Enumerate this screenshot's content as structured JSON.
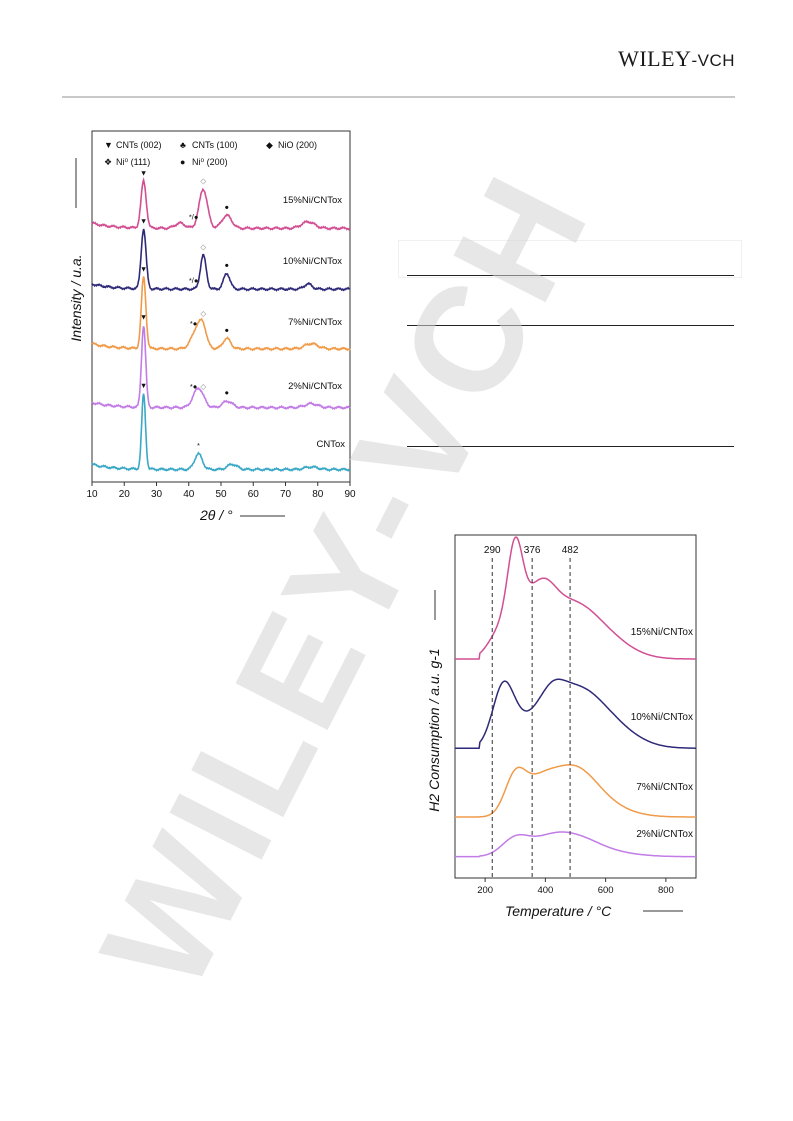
{
  "header": {
    "brand_main": "WILEY",
    "brand_suffix": "-VCH"
  },
  "watermark": {
    "text": "WILEY-VCH",
    "color": "#d3d3d3"
  },
  "chart_data": [
    {
      "type": "line",
      "id": "xrd",
      "xlabel": "2θ / °",
      "ylabel": "Intensity / u.a.",
      "xlim": [
        10,
        90
      ],
      "xticks": [
        10,
        20,
        30,
        40,
        50,
        60,
        70,
        80,
        90
      ],
      "legend": {
        "placement": "top",
        "entries": [
          {
            "symbol": "▼",
            "label": "CNTs (002)"
          },
          {
            "symbol": "♣",
            "label": "CNTs (100)"
          },
          {
            "symbol": "◆",
            "label": "NiO (200)"
          },
          {
            "symbol": "❖",
            "label": "Ni⁰ (111)"
          },
          {
            "symbol": "●",
            "label": "Ni⁰ (200)"
          }
        ]
      },
      "series": [
        {
          "name": "15%Ni/CNTox",
          "color": "#d24f93",
          "base": 0.09,
          "peaks": [
            [
              26,
              0.36,
              0.8
            ],
            [
              37.3,
              0.04,
              1.5
            ],
            [
              44.5,
              0.3,
              1.3
            ],
            [
              51.8,
              0.1,
              1.5
            ],
            [
              77,
              0.05,
              2
            ]
          ],
          "markers": [
            {
              "x": 26,
              "symbol": "▼"
            },
            {
              "x": 41.5,
              "symbol": "*/●"
            },
            {
              "x": 44.5,
              "symbol": "◇"
            },
            {
              "x": 51.8,
              "symbol": "●"
            }
          ]
        },
        {
          "name": "10%Ni/CNTox",
          "color": "#2e2a78",
          "base": 0.03,
          "peaks": [
            [
              26,
              0.46,
              0.75
            ],
            [
              44.5,
              0.26,
              0.9
            ],
            [
              51.8,
              0.12,
              1.0
            ],
            [
              77,
              0.04,
              1.2
            ]
          ],
          "markers": [
            {
              "x": 26,
              "symbol": "▼"
            },
            {
              "x": 41.5,
              "symbol": "*/●"
            },
            {
              "x": 44.5,
              "symbol": "◇"
            },
            {
              "x": 51.8,
              "symbol": "●"
            }
          ]
        },
        {
          "name": "7%Ni/CNTox",
          "color": "#f09b4a",
          "base": 0.04,
          "peaks": [
            [
              26,
              0.55,
              0.7
            ],
            [
              43,
              0.18,
              1.8
            ],
            [
              44.5,
              0.08,
              0.9
            ],
            [
              51.8,
              0.08,
              1.2
            ],
            [
              78,
              0.04,
              2
            ]
          ],
          "markers": [
            {
              "x": 26,
              "symbol": "▼"
            },
            {
              "x": 41.5,
              "symbol": "*●"
            },
            {
              "x": 44.5,
              "symbol": "◇"
            },
            {
              "x": 51.8,
              "symbol": "●"
            }
          ]
        },
        {
          "name": "2%Ni/CNTox",
          "color": "#c27ce6",
          "base": 0.08,
          "peaks": [
            [
              26,
              0.63,
              0.65
            ],
            [
              43,
              0.15,
              1.6
            ],
            [
              52,
              0.05,
              1.5
            ],
            [
              78,
              0.03,
              2
            ]
          ],
          "markers": [
            {
              "x": 26,
              "symbol": "▼"
            },
            {
              "x": 41.5,
              "symbol": "*●"
            },
            {
              "x": 44.5,
              "symbol": "◇"
            },
            {
              "x": 51.8,
              "symbol": "●"
            }
          ]
        },
        {
          "name": "CNTox",
          "color": "#3ba8c6",
          "base": 0.05,
          "peaks": [
            [
              26,
              0.58,
              0.6
            ],
            [
              43,
              0.12,
              1.2
            ],
            [
              53.5,
              0.04,
              1.5
            ],
            [
              78,
              0.02,
              2
            ]
          ],
          "markers": [
            {
              "x": 26,
              "symbol": "▼"
            },
            {
              "x": 43,
              "symbol": "*"
            }
          ]
        }
      ]
    },
    {
      "type": "line",
      "id": "tpr",
      "xlabel": "Temperature / °C",
      "ylabel": "H2 Consumption / a.u. g-1",
      "xlim": [
        100,
        900
      ],
      "xticks": [
        200,
        400,
        600,
        800
      ],
      "annotations": [
        {
          "x": 290,
          "label": "290",
          "style": "dashed"
        },
        {
          "x": 376,
          "label": "376",
          "style": "dashed"
        },
        {
          "x": 482,
          "label": "482",
          "style": "dashed"
        }
      ],
      "series": [
        {
          "name": "15%Ni/CNTox",
          "color": "#d24f93",
          "base": 0.06,
          "peaks": [
            [
              255,
              0.28,
              40
            ],
            [
              300,
              0.85,
              25
            ],
            [
              345,
              0.24,
              35
            ],
            [
              395,
              0.35,
              40
            ],
            [
              480,
              0.55,
              95
            ],
            [
              620,
              0.1,
              80
            ]
          ]
        },
        {
          "name": "10%Ni/CNTox",
          "color": "#2e2a78",
          "base": 0.05,
          "peaks": [
            [
              260,
              0.72,
              35
            ],
            [
              320,
              0.2,
              60
            ],
            [
              420,
              0.25,
              40
            ],
            [
              500,
              0.8,
              100
            ],
            [
              650,
              0.1,
              80
            ]
          ]
        },
        {
          "name": "7%Ni/CNTox",
          "color": "#f09b4a",
          "base": 0.04,
          "peaks": [
            [
              300,
              0.5,
              35
            ],
            [
              375,
              0.3,
              50
            ],
            [
              490,
              0.65,
              80
            ],
            [
              620,
              0.08,
              80
            ]
          ]
        },
        {
          "name": "2%Ni/CNTox",
          "color": "#c27ce6",
          "base": 0.03,
          "peaks": [
            [
              300,
              0.38,
              45
            ],
            [
              400,
              0.2,
              60
            ],
            [
              490,
              0.45,
              85
            ],
            [
              650,
              0.05,
              80
            ]
          ]
        }
      ]
    }
  ]
}
